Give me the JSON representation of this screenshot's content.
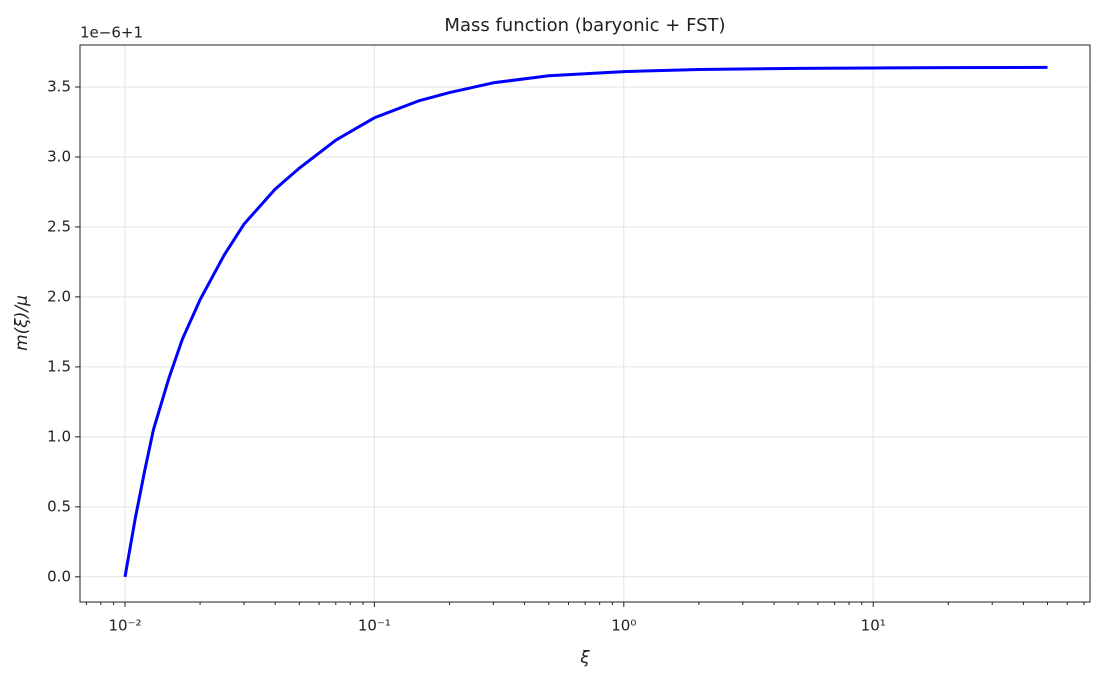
{
  "chart_data": {
    "type": "line",
    "title": "Mass function (baryonic + FST)",
    "x_label": "ξ",
    "y_label": "m(ξ)/μ",
    "y_offset_label": "1e−6+1",
    "x_scale": "log",
    "grid": true,
    "xlim": [
      0.0066,
      74
    ],
    "ylim": [
      -0.18,
      3.8
    ],
    "xticks": [
      {
        "value": 0.01,
        "label": "10⁻²"
      },
      {
        "value": 0.1,
        "label": "10⁻¹"
      },
      {
        "value": 1,
        "label": "10⁰"
      },
      {
        "value": 10,
        "label": "10¹"
      }
    ],
    "yticks": [
      {
        "value": 0,
        "label": "0.0"
      },
      0.5,
      {
        "value": 1,
        "label": "1.0"
      },
      1.5,
      {
        "value": 2,
        "label": "2.0"
      },
      2.5,
      {
        "value": 3,
        "label": "3.0"
      },
      3.5
    ],
    "series": [
      {
        "name": "m(ξ)/μ",
        "color": "#0000ff",
        "x": [
          0.01,
          0.011,
          0.012,
          0.013,
          0.015,
          0.017,
          0.02,
          0.025,
          0.03,
          0.04,
          0.05,
          0.07,
          0.1,
          0.15,
          0.2,
          0.3,
          0.5,
          1,
          2,
          5,
          10,
          20,
          50
        ],
        "values": [
          0,
          0.42,
          0.76,
          1.05,
          1.42,
          1.7,
          1.98,
          2.3,
          2.52,
          2.77,
          2.92,
          3.12,
          3.28,
          3.4,
          3.46,
          3.53,
          3.58,
          3.61,
          3.625,
          3.633,
          3.636,
          3.638,
          3.64
        ]
      }
    ]
  }
}
